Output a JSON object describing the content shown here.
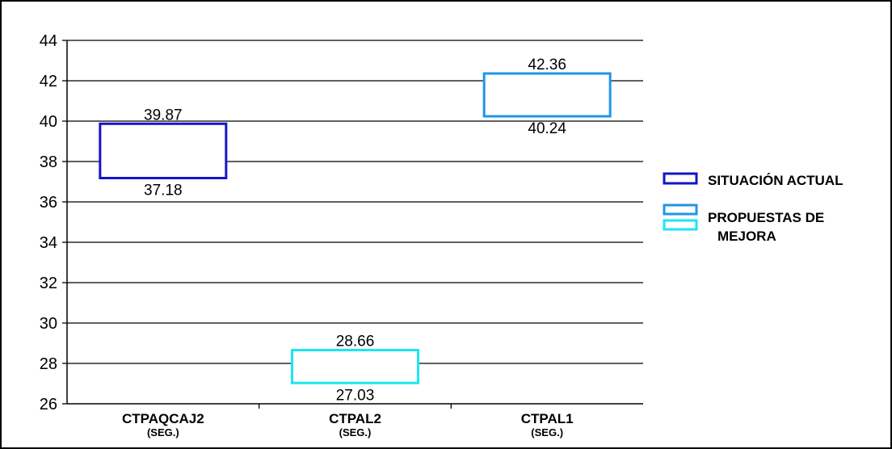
{
  "chart_data": {
    "type": "floating-bar",
    "title": "",
    "xlabel": "",
    "ylabel": "",
    "ylim": [
      26,
      44
    ],
    "yticks": [
      "26",
      "28",
      "30",
      "32",
      "34",
      "36",
      "38",
      "40",
      "42",
      "44"
    ],
    "grid": true,
    "legend_position": "right",
    "categories": [
      {
        "name": "CTPAQCAJ2",
        "unit": "(SEG.)"
      },
      {
        "name": "CTPAL2",
        "unit": "(SEG.)"
      },
      {
        "name": "CTPAL1",
        "unit": "(SEG.)"
      }
    ],
    "bars": [
      {
        "category": "CTPAQCAJ2",
        "low": 37.18,
        "high": 39.87,
        "low_label": "37.18",
        "high_label": "39.87",
        "color": "#1414c8"
      },
      {
        "category": "CTPAL2",
        "low": 27.03,
        "high": 28.66,
        "low_label": "27.03",
        "high_label": "28.66",
        "color": "#1ee6f0"
      },
      {
        "category": "CTPAL1",
        "low": 40.24,
        "high": 42.36,
        "low_label": "40.24",
        "high_label": "42.36",
        "color": "#1e96e6"
      }
    ],
    "legend": [
      {
        "label": "SITUACIÓN ACTUAL",
        "colors": [
          "#1414c8"
        ]
      },
      {
        "label_lines": [
          "PROPUESTAS DE",
          "MEJORA"
        ],
        "colors": [
          "#1e96e6",
          "#1ee6f0"
        ]
      }
    ]
  }
}
